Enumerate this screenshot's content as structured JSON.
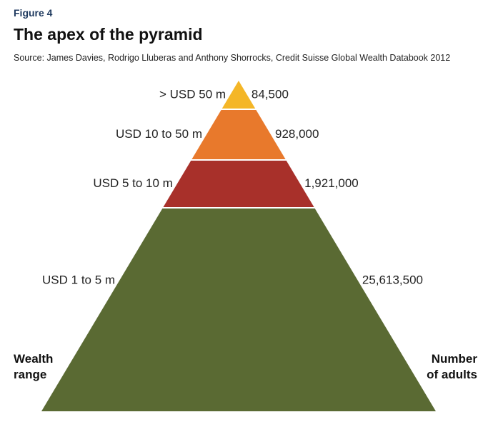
{
  "figure_label": "Figure 4",
  "title": "The apex of the pyramid",
  "source": "Source: James Davies, Rodrigo Lluberas and Anthony Shorrocks, Credit Suisse Global Wealth Databook 2012",
  "left_axis_title": [
    "Wealth",
    "range"
  ],
  "right_axis_title": [
    "Number",
    "of adults"
  ],
  "chart_data": {
    "type": "pyramid",
    "title": "The apex of the pyramid",
    "tiers": [
      {
        "wealth_range": "> USD 50 m",
        "adults_label": "84,500",
        "adults": 84500,
        "color": "#f4b627"
      },
      {
        "wealth_range": "USD 10 to 50 m",
        "adults_label": "928,000",
        "adults": 928000,
        "color": "#e8792c"
      },
      {
        "wealth_range": "USD 5 to 10 m",
        "adults_label": "1,921,000",
        "adults": 1921000,
        "color": "#a8302a"
      },
      {
        "wealth_range": "USD 1 to 5 m",
        "adults_label": "25,613,500",
        "adults": 25613500,
        "color": "#5a6a33"
      }
    ]
  }
}
